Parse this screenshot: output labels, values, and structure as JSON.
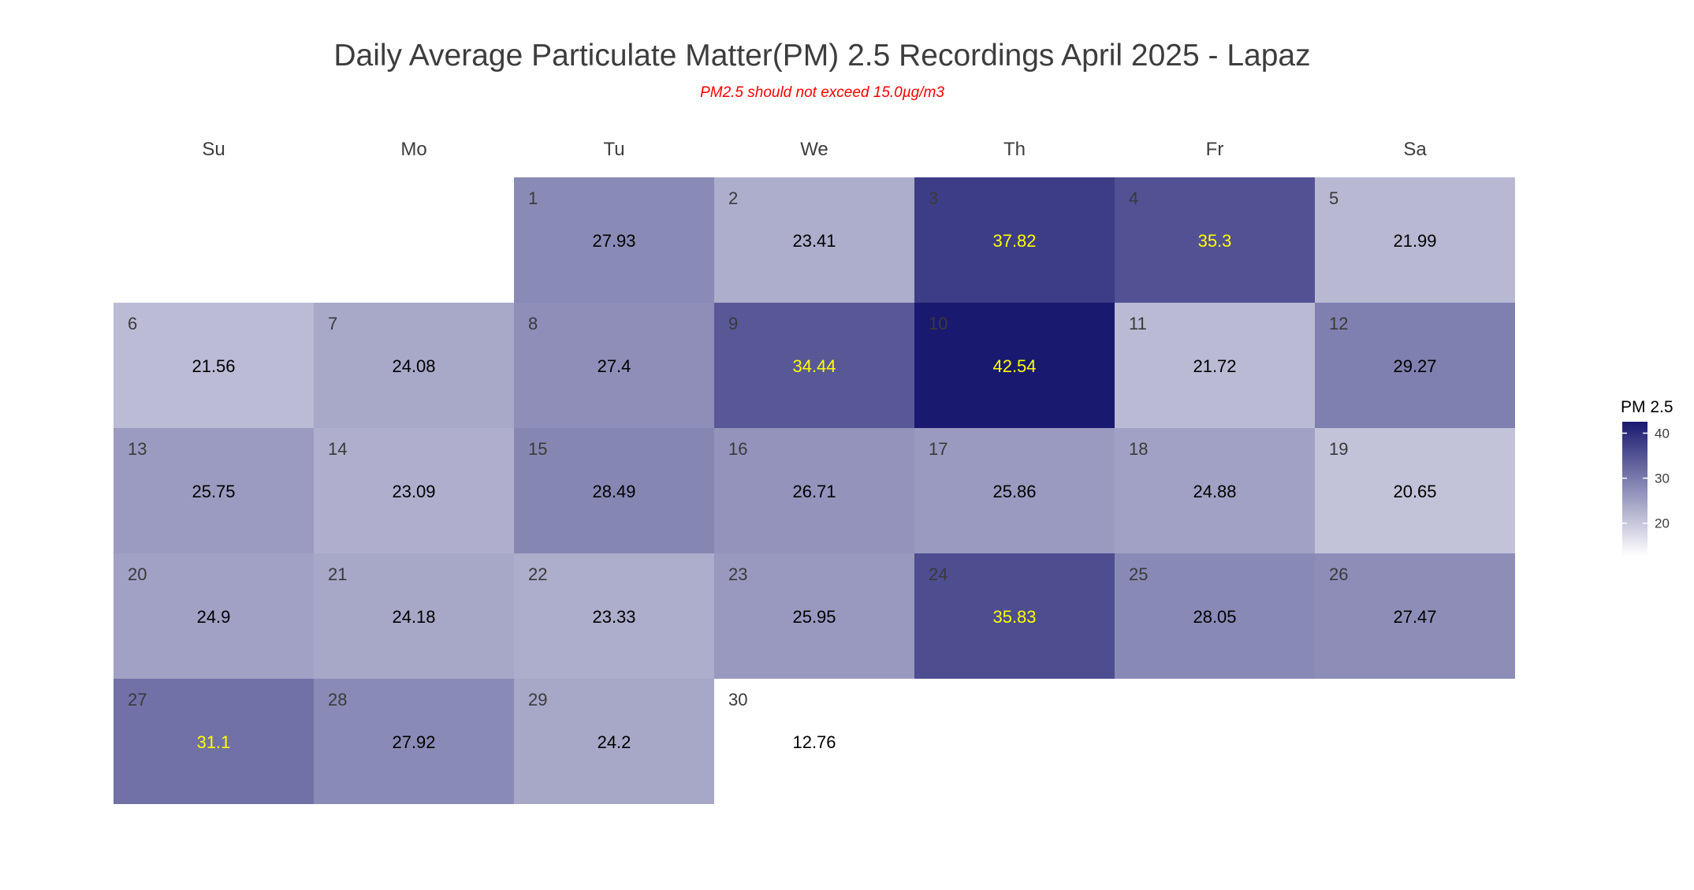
{
  "chart_data": {
    "type": "heatmap",
    "subtype": "calendar",
    "title": "Daily Average Particulate Matter(PM) 2.5 Recordings April 2025 -  Lapaz",
    "subtitle": "PM2.5 should not exceed 15.0µg/m3",
    "weekdays": [
      "Su",
      "Mo",
      "Tu",
      "We",
      "Th",
      "Fr",
      "Sa"
    ],
    "month": "April 2025",
    "first_weekday_index": 2,
    "days": [
      1,
      2,
      3,
      4,
      5,
      6,
      7,
      8,
      9,
      10,
      11,
      12,
      13,
      14,
      15,
      16,
      17,
      18,
      19,
      20,
      21,
      22,
      23,
      24,
      25,
      26,
      27,
      28,
      29,
      30
    ],
    "value_labels": [
      "27.93",
      "23.41",
      "37.82",
      "35.3",
      "21.99",
      "21.56",
      "24.08",
      "27.4",
      "34.44",
      "42.54",
      "21.72",
      "29.27",
      "25.75",
      "23.09",
      "28.49",
      "26.71",
      "25.86",
      "24.88",
      "20.65",
      "24.9",
      "24.18",
      "23.33",
      "25.95",
      "35.83",
      "28.05",
      "27.47",
      "31.1",
      "27.92",
      "24.2",
      "12.76"
    ],
    "values": [
      27.93,
      23.41,
      37.82,
      35.3,
      21.99,
      21.56,
      24.08,
      27.4,
      34.44,
      42.54,
      21.72,
      29.27,
      25.75,
      23.09,
      28.49,
      26.71,
      25.86,
      24.88,
      20.65,
      24.9,
      24.18,
      23.33,
      25.95,
      35.83,
      28.05,
      27.47,
      31.1,
      27.92,
      24.2,
      12.76
    ],
    "legend": {
      "title": "PM 2.5",
      "ticks": [
        "20",
        "30",
        "40"
      ],
      "tick_values": [
        20,
        30,
        40
      ],
      "placement": "right"
    },
    "color_scale": {
      "low_value": 12.76,
      "high_value": 42.54,
      "low_color": "#ffffff",
      "high_color": "#191970"
    },
    "label_colors": {
      "normal": "#000000",
      "high": "#ffff00",
      "high_threshold": 30,
      "day_number": "#3a3a3a"
    },
    "colors": {
      "title": "#3d3d3d",
      "subtitle": "#ff0000",
      "axis_text": "#3d3d3d"
    }
  }
}
